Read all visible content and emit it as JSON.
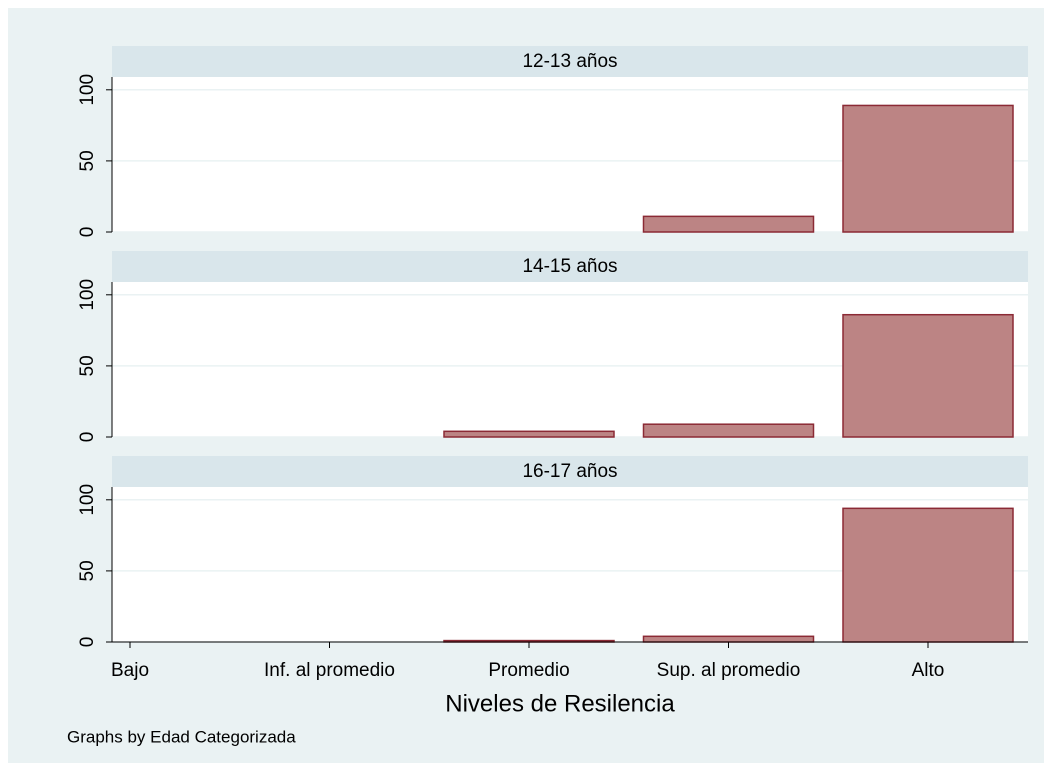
{
  "chart_data": {
    "type": "bar",
    "categories": [
      "Bajo",
      "Inf. al promedio",
      "Promedio",
      "Sup. al promedio",
      "Alto"
    ],
    "xlabel": "Niveles de Resilencia",
    "note": "Graphs by Edad Categorizada",
    "color": "#bc8484",
    "edge_color": "#8b2a35",
    "ylim": [
      0,
      109
    ],
    "yticks": [
      0,
      50,
      100
    ],
    "grid": true,
    "panels": [
      {
        "title": "12-13 años",
        "values": [
          0,
          0,
          0,
          11,
          89
        ]
      },
      {
        "title": "14-15 años",
        "values": [
          0,
          0,
          4,
          9,
          86
        ]
      },
      {
        "title": "16-17 años",
        "values": [
          0,
          0,
          1,
          4,
          94
        ]
      }
    ]
  }
}
